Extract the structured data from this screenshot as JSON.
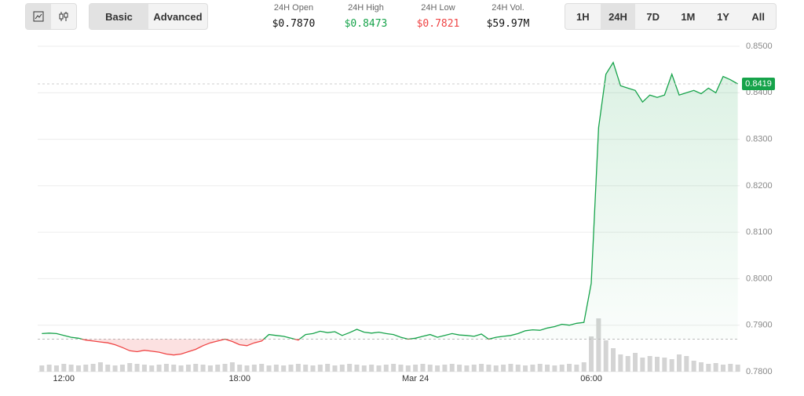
{
  "tabs": {
    "items": [
      "Basic",
      "Advanced"
    ],
    "active": 0
  },
  "stats": [
    {
      "label": "24H Open",
      "value": 0.787,
      "value_label": "$0.7870",
      "color": "#111111"
    },
    {
      "label": "24H High",
      "value": 0.8473,
      "value_label": "$0.8473",
      "color": "#16a34a"
    },
    {
      "label": "24H Low",
      "value": 0.7821,
      "value_label": "$0.7821",
      "color": "#ef4444"
    },
    {
      "label": "24H Vol.",
      "value_label": "$59.97M",
      "color": "#111111"
    }
  ],
  "timeframes": {
    "items": [
      "1H",
      "24H",
      "7D",
      "1M",
      "1Y",
      "All"
    ],
    "active": 1
  },
  "chart_data": {
    "type": "line",
    "categories": [
      null,
      null,
      null,
      "12:00",
      null,
      null,
      null,
      null,
      null,
      null,
      null,
      null,
      null,
      null,
      null,
      null,
      null,
      null,
      null,
      null,
      null,
      null,
      null,
      null,
      null,
      null,
      null,
      "18:00",
      null,
      null,
      null,
      null,
      null,
      null,
      null,
      null,
      null,
      null,
      null,
      null,
      null,
      null,
      null,
      null,
      null,
      null,
      null,
      null,
      null,
      null,
      null,
      "Mar 24",
      null,
      null,
      null,
      null,
      null,
      null,
      null,
      null,
      null,
      null,
      null,
      null,
      null,
      null,
      null,
      null,
      null,
      null,
      null,
      null,
      null,
      null,
      null,
      "06:00",
      null,
      null,
      null,
      null,
      null,
      null,
      null,
      null,
      null,
      null,
      null,
      null,
      null,
      null,
      null,
      null,
      null,
      null,
      null,
      null
    ],
    "series": [
      {
        "up_color": "#16a34a",
        "down_color": "#ef4444",
        "values": [
          0.7882,
          0.7883,
          0.7882,
          0.7878,
          0.7874,
          0.7872,
          0.7868,
          0.7866,
          0.7864,
          0.7862,
          0.7858,
          0.7852,
          0.7845,
          0.7843,
          0.7846,
          0.7844,
          0.7842,
          0.7838,
          0.7836,
          0.7838,
          0.7843,
          0.7848,
          0.7856,
          0.7862,
          0.7866,
          0.787,
          0.7865,
          0.7858,
          0.7856,
          0.7862,
          0.7866,
          0.788,
          0.7878,
          0.7876,
          0.7872,
          0.7868,
          0.788,
          0.7882,
          0.7887,
          0.7884,
          0.7886,
          0.7878,
          0.7884,
          0.7891,
          0.7885,
          0.7883,
          0.7885,
          0.7882,
          0.788,
          0.7874,
          0.787,
          0.7872,
          0.7876,
          0.788,
          0.7874,
          0.7878,
          0.7882,
          0.7879,
          0.7878,
          0.7876,
          0.7881,
          0.787,
          0.7874,
          0.7876,
          0.7878,
          0.7882,
          0.7888,
          0.789,
          0.7889,
          0.7894,
          0.7897,
          0.7902,
          0.79,
          0.7904,
          0.7906,
          0.799,
          0.8325,
          0.844,
          0.8465,
          0.8415,
          0.841,
          0.8405,
          0.838,
          0.8395,
          0.839,
          0.8395,
          0.844,
          0.8395,
          0.84,
          0.8405,
          0.8398,
          0.841,
          0.84,
          0.8435,
          0.8428,
          0.8419
        ]
      }
    ],
    "volume": [
      8,
      9,
      8,
      10,
      9,
      8,
      9,
      10,
      12,
      9,
      8,
      9,
      11,
      10,
      9,
      8,
      9,
      10,
      9,
      8,
      9,
      10,
      9,
      8,
      9,
      10,
      12,
      9,
      8,
      9,
      10,
      8,
      9,
      8,
      9,
      10,
      9,
      8,
      9,
      10,
      8,
      9,
      10,
      9,
      8,
      9,
      8,
      9,
      10,
      9,
      8,
      9,
      10,
      9,
      8,
      9,
      10,
      9,
      8,
      9,
      10,
      9,
      8,
      9,
      10,
      9,
      8,
      9,
      10,
      9,
      8,
      9,
      10,
      9,
      12,
      45,
      68,
      40,
      30,
      22,
      20,
      24,
      18,
      20,
      19,
      18,
      16,
      22,
      20,
      14,
      12,
      10,
      11,
      9,
      10,
      9
    ],
    "volume_color": "#d4d4d4",
    "ylim": [
      0.78,
      0.85
    ],
    "yticks": [
      {
        "value": 0.78,
        "label": "0.7800"
      },
      {
        "value": 0.79,
        "label": "0.7900"
      },
      {
        "value": 0.8,
        "label": "0.8000"
      },
      {
        "value": 0.81,
        "label": "0.8100"
      },
      {
        "value": 0.82,
        "label": "0.8200"
      },
      {
        "value": 0.83,
        "label": "0.8300"
      },
      {
        "value": 0.84,
        "label": "0.8400"
      },
      {
        "value": 0.85,
        "label": "0.8500"
      }
    ],
    "grid": true
  }
}
